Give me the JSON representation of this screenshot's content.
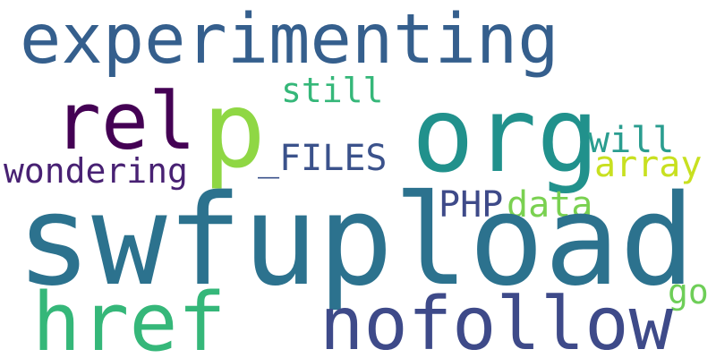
{
  "words": {
    "experimenting": {
      "text": "experimenting",
      "color": "#355f8d"
    },
    "rel": {
      "text": "rel",
      "color": "#440154"
    },
    "p": {
      "text": "p",
      "color": "#8fd744"
    },
    "org": {
      "text": "org",
      "color": "#21918c"
    },
    "still": {
      "text": "still",
      "color": "#35b779"
    },
    "will": {
      "text": "will",
      "color": "#2a9d8f"
    },
    "array": {
      "text": "array",
      "color": "#c8e020"
    },
    "wondering": {
      "text": "wondering",
      "color": "#482173"
    },
    "files": {
      "text": "_FILES",
      "color": "#3b528b"
    },
    "php": {
      "text": "PHP",
      "color": "#3e4a89"
    },
    "data": {
      "text": "data",
      "color": "#7ad151"
    },
    "swfupload": {
      "text": "swfupload",
      "color": "#2c728e"
    },
    "go": {
      "text": "go",
      "color": "#6ece58"
    },
    "href": {
      "text": "href",
      "color": "#35b779"
    },
    "nofollow": {
      "text": "nofollow",
      "color": "#3e4a89"
    }
  }
}
